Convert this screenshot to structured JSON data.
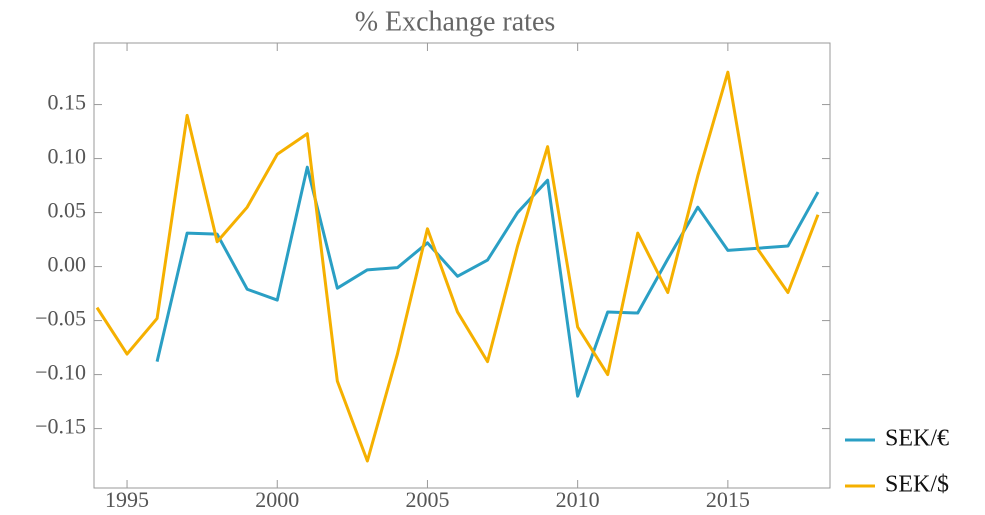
{
  "chart_data": {
    "type": "line",
    "title": "% Exchange rates",
    "x": [
      1994,
      1995,
      1996,
      1997,
      1998,
      1999,
      2000,
      2001,
      2002,
      2003,
      2004,
      2005,
      2006,
      2007,
      2008,
      2009,
      2010,
      2011,
      2012,
      2013,
      2014,
      2015,
      2016,
      2017,
      2018
    ],
    "series": [
      {
        "name": "SEK/€",
        "color": "#2a9fc4",
        "values": [
          null,
          null,
          -0.088,
          0.031,
          0.03,
          -0.021,
          -0.031,
          0.092,
          -0.02,
          -0.003,
          -0.001,
          0.022,
          -0.009,
          0.006,
          0.05,
          0.08,
          -0.12,
          -0.042,
          -0.043,
          0.007,
          0.055,
          0.015,
          0.017,
          0.019,
          0.069
        ]
      },
      {
        "name": "SEK/$",
        "color": "#f5b000",
        "values": [
          -0.038,
          -0.081,
          -0.048,
          0.14,
          0.023,
          0.055,
          0.104,
          0.123,
          -0.106,
          -0.18,
          -0.081,
          0.035,
          -0.042,
          -0.088,
          0.019,
          0.111,
          -0.056,
          -0.1,
          0.031,
          -0.024,
          0.084,
          0.18,
          0.016,
          -0.024,
          0.048
        ]
      }
    ],
    "xlim": [
      1993.9,
      2018.4
    ],
    "xticks": [
      1995,
      2000,
      2005,
      2010,
      2015
    ],
    "ylim": [
      -0.205,
      0.207
    ],
    "yticks": [
      {
        "value": -0.15,
        "label": "−0.15"
      },
      {
        "value": -0.1,
        "label": "−0.10"
      },
      {
        "value": -0.05,
        "label": "−0.05"
      },
      {
        "value": 0,
        "label": "0.00"
      },
      0.05,
      {
        "value": 0.1,
        "label": "0.10"
      },
      0.15
    ],
    "legend": "bottom-right"
  }
}
